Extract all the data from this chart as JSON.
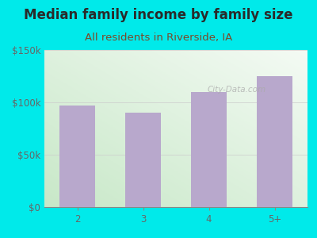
{
  "title": "Median family income by family size",
  "subtitle": "All residents in Riverside, IA",
  "categories": [
    "2",
    "3",
    "4",
    "5+"
  ],
  "values": [
    97000,
    90000,
    110000,
    125000
  ],
  "bar_color": "#b8a8cc",
  "bg_outer": "#00eaea",
  "bg_inner_topleft": "#dff0df",
  "bg_inner_topright": "#f5f5f5",
  "bg_inner_bottomleft": "#c8e6c8",
  "bg_inner_bottomright": "#ffffff",
  "title_color": "#2a2a2a",
  "subtitle_color": "#7a4a2a",
  "axis_color": "#888888",
  "tick_color": "#666666",
  "ylim": [
    0,
    150000
  ],
  "yticks": [
    0,
    50000,
    100000,
    150000
  ],
  "ytick_labels": [
    "$0",
    "$50k",
    "$100k",
    "$150k"
  ],
  "watermark": "City-Data.com",
  "title_fontsize": 12,
  "subtitle_fontsize": 9.5,
  "tick_fontsize": 8.5
}
